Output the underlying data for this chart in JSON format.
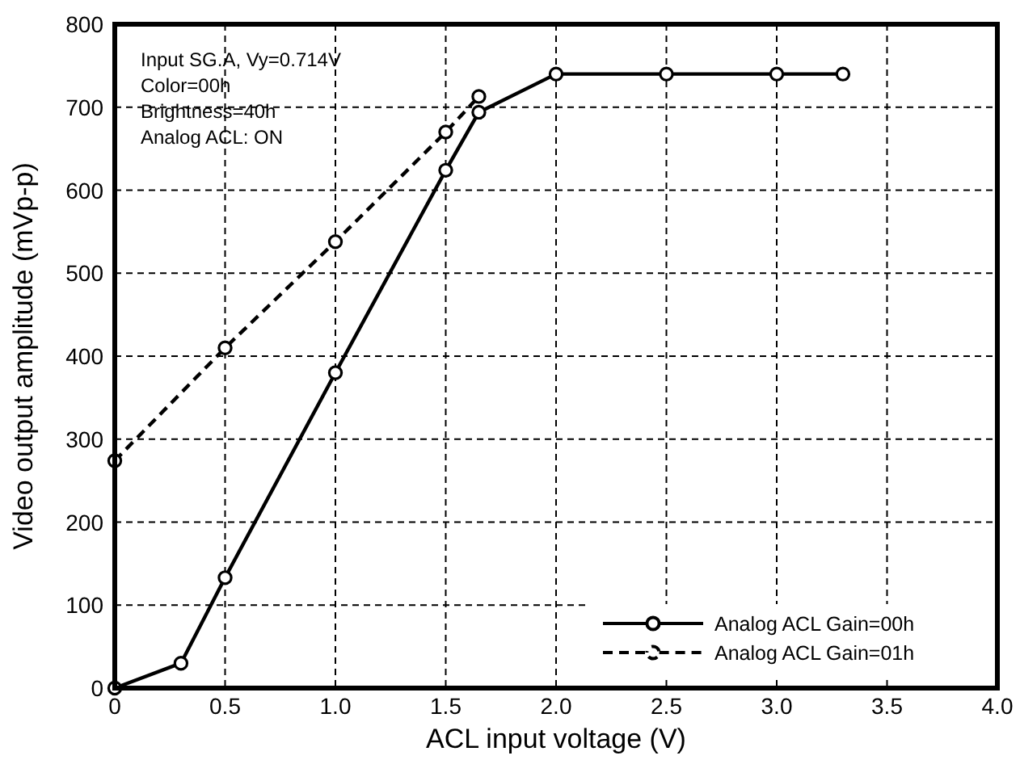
{
  "chart_data": {
    "type": "line",
    "xlabel": "ACL input voltage (V)",
    "ylabel": "Video output amplitude (mVp-p)",
    "xlim": [
      0,
      4
    ],
    "xticks": [
      0,
      0.5,
      {
        "value": 1,
        "label": "1.0"
      },
      1.5,
      {
        "value": 2,
        "label": "2.0"
      },
      2.5,
      {
        "value": 3,
        "label": "3.0"
      },
      3.5,
      {
        "value": 4,
        "label": "4.0"
      }
    ],
    "ylim": [
      0,
      800
    ],
    "yticks": [
      0,
      100,
      200,
      300,
      400,
      500,
      600,
      700,
      800
    ],
    "grid": true,
    "legend": "bottom right",
    "marker": "circle",
    "annotations": [
      "Input SG.A, Vy=0.714V",
      "Color=00h",
      "Brightness=40h",
      "Analog ACL: ON"
    ],
    "series": [
      {
        "name": "Analog ACL Gain=00h",
        "color": "#000000",
        "line_style": "solid",
        "x": [
          0,
          0.3,
          0.5,
          1,
          1.5,
          1.65,
          2,
          2.5,
          3,
          3.3
        ],
        "values": [
          0,
          30,
          133,
          380,
          624,
          694,
          740,
          740,
          740,
          740
        ]
      },
      {
        "name": "Analog ACL Gain=01h",
        "color": "#000000",
        "line_style": "dashed",
        "x": [
          0,
          0.5,
          1,
          1.5,
          1.65
        ],
        "values": [
          274,
          410,
          538,
          670,
          713
        ]
      }
    ]
  }
}
